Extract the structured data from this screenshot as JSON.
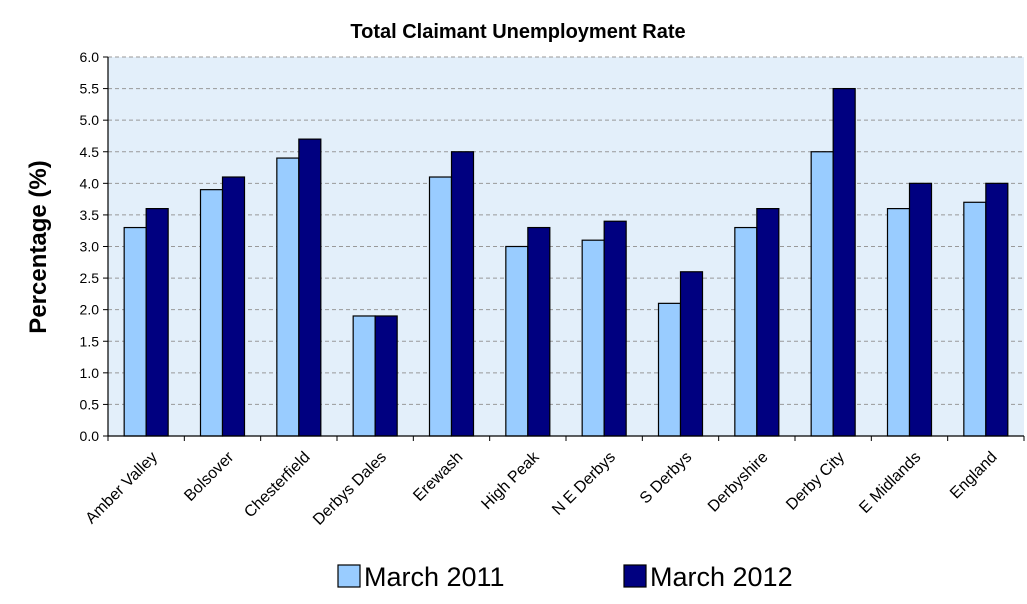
{
  "chart_data": {
    "type": "bar",
    "title": "Total Claimant Unemployment Rate",
    "xlabel": "",
    "ylabel": "Percentage (%)",
    "ylim": [
      0,
      6
    ],
    "yticks": [
      "0.0",
      "0.5",
      "1.0",
      "1.5",
      "2.0",
      "2.5",
      "3.0",
      "3.5",
      "4.0",
      "4.5",
      "5.0",
      "5.5",
      "6.0"
    ],
    "categories": [
      "Amber Valley",
      "Bolsover",
      "Chesterfield",
      "Derbys Dales",
      "Erewash",
      "High Peak",
      "N E Derbys",
      "S Derbys",
      "Derbyshire",
      "Derby City",
      "E Midlands",
      "England"
    ],
    "series": [
      {
        "name": "March 2011",
        "color": "#99ccff",
        "values": [
          3.3,
          3.9,
          4.4,
          1.9,
          4.1,
          3.0,
          3.1,
          2.1,
          3.3,
          4.5,
          3.6,
          3.7
        ]
      },
      {
        "name": "March 2012",
        "color": "#000080",
        "values": [
          3.6,
          4.1,
          4.7,
          1.9,
          4.5,
          3.3,
          3.4,
          2.6,
          3.6,
          5.5,
          4.0,
          4.0
        ]
      }
    ],
    "grid": true,
    "legend_position": "bottom",
    "plot_background": "#e3effa"
  }
}
